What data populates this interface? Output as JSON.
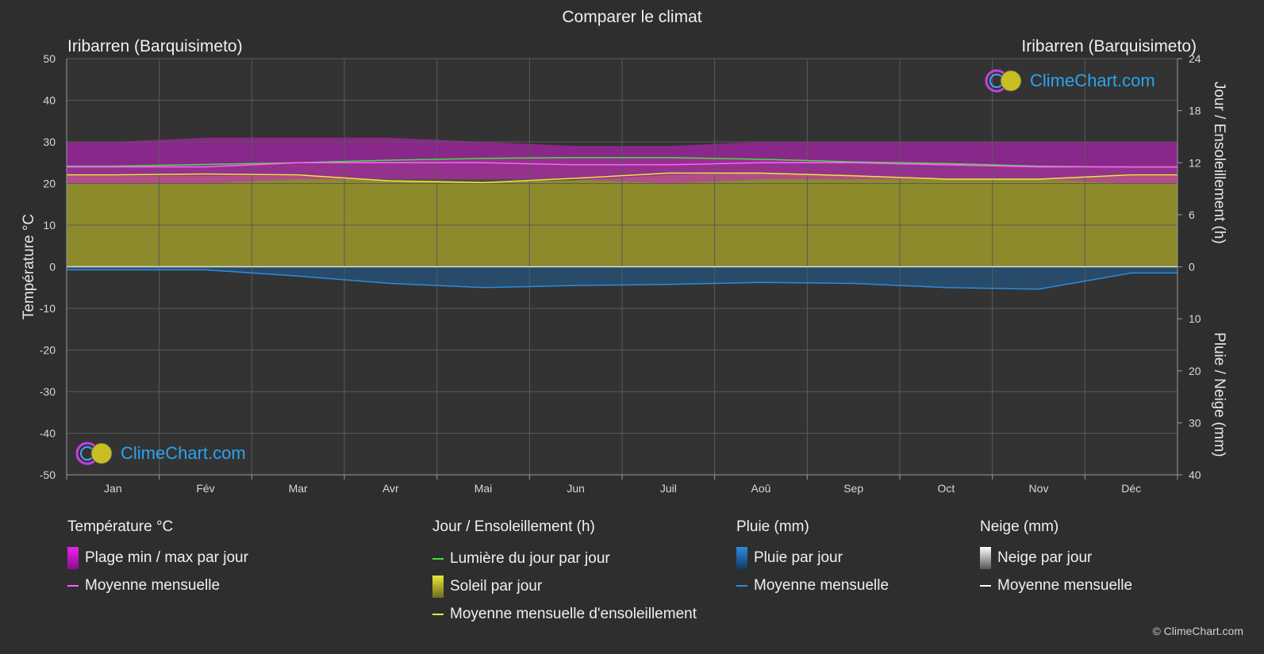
{
  "title": "Comparer le climat",
  "location_left": "Iribarren (Barquisimeto)",
  "location_right": "Iribarren (Barquisimeto)",
  "brand": "ClimeChart.com",
  "copyright": "© ClimeChart.com",
  "colors": {
    "background": "#2e2e2e",
    "temp_range": "#d21ed2",
    "temp_mean": "#ff60ff",
    "daylight": "#44dd44",
    "sunshine_fill": "#9c9a2a",
    "sunshine_mean": "#e8e838",
    "rain_fill": "#1d5f96",
    "rain_mean": "#2a8ce0",
    "snow": "#ffffff"
  },
  "legend": {
    "temperature": {
      "title": "Température °C",
      "range": "Plage min / max par jour",
      "mean": "Moyenne mensuelle"
    },
    "sun": {
      "title": "Jour / Ensoleillement (h)",
      "daylight": "Lumière du jour par jour",
      "sunshine": "Soleil par jour",
      "sunshine_mean": "Moyenne mensuelle d'ensoleillement"
    },
    "rain": {
      "title": "Pluie (mm)",
      "per_day": "Pluie par jour",
      "mean": "Moyenne mensuelle"
    },
    "snow": {
      "title": "Neige (mm)",
      "per_day": "Neige par jour",
      "mean": "Moyenne mensuelle"
    }
  },
  "chart_data": {
    "type": "area",
    "categories": [
      "Jan",
      "Fév",
      "Mar",
      "Avr",
      "Mai",
      "Jun",
      "Juil",
      "Aoû",
      "Sep",
      "Oct",
      "Nov",
      "Déc"
    ],
    "y_left": {
      "label": "Température °C",
      "ylim": [
        -50,
        50
      ],
      "ticks": [
        50,
        40,
        30,
        20,
        10,
        0,
        -10,
        -20,
        -30,
        -40,
        -50
      ]
    },
    "y_right_top": {
      "label": "Jour / Ensoleillement (h)",
      "ylim": [
        0,
        24
      ],
      "ticks": [
        24,
        18,
        12,
        6,
        0
      ]
    },
    "y_right_bottom": {
      "label": "Pluie / Neige (mm)",
      "ylim": [
        0,
        40
      ],
      "ticks": [
        0,
        10,
        20,
        30,
        40
      ]
    },
    "grid": true,
    "series": [
      {
        "name": "Plage min / max par jour",
        "unit": "°C",
        "min": [
          20,
          20,
          21,
          21,
          21,
          21,
          20,
          21,
          21,
          21,
          21,
          20
        ],
        "max": [
          30,
          31,
          31,
          31,
          30,
          29,
          29,
          30,
          30,
          30,
          30,
          30
        ]
      },
      {
        "name": "Moyenne mensuelle",
        "unit": "°C",
        "values": [
          24,
          24,
          25,
          25,
          25,
          24.5,
          24.5,
          25,
          25,
          24.5,
          24,
          24
        ]
      },
      {
        "name": "Lumière du jour par jour",
        "unit": "h",
        "values": [
          11.6,
          11.8,
          12.0,
          12.3,
          12.5,
          12.6,
          12.6,
          12.4,
          12.1,
          11.9,
          11.6,
          11.5
        ]
      },
      {
        "name": "Soleil par jour",
        "unit": "h",
        "values": [
          10.5,
          10.5,
          10.5,
          10.0,
          9.8,
          10.0,
          10.6,
          10.8,
          10.5,
          10.2,
          10.2,
          10.5
        ]
      },
      {
        "name": "Moyenne mensuelle d'ensoleillement",
        "unit": "h",
        "values": [
          10.6,
          10.7,
          10.6,
          9.9,
          9.7,
          10.2,
          10.8,
          10.8,
          10.5,
          10.1,
          10.1,
          10.6
        ]
      },
      {
        "name": "Pluie par jour (Moyenne mensuelle)",
        "unit": "mm",
        "values": [
          0.6,
          0.6,
          1.8,
          3.2,
          4.0,
          3.6,
          3.4,
          3.0,
          3.2,
          4.0,
          4.3,
          1.2
        ]
      },
      {
        "name": "Neige par jour (Moyenne mensuelle)",
        "unit": "mm",
        "values": [
          0,
          0,
          0,
          0,
          0,
          0,
          0,
          0,
          0,
          0,
          0,
          0
        ]
      }
    ]
  }
}
